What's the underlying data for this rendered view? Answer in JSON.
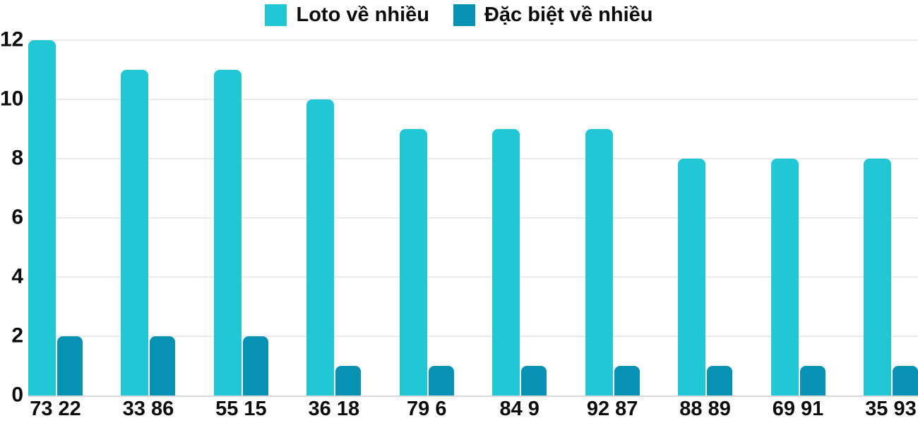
{
  "chart_data": {
    "type": "bar",
    "title": "",
    "categories": [
      "73 22",
      "33 86",
      "55 15",
      "36 18",
      "79 6",
      "84 9",
      "92 87",
      "88 89",
      "69 91",
      "35 93"
    ],
    "series": [
      {
        "name": "Loto về nhiều",
        "color": "#22c7d6",
        "values": [
          12,
          11,
          11,
          10,
          9,
          9,
          9,
          8,
          8,
          8
        ]
      },
      {
        "name": "Đặc biệt về nhiều",
        "color": "#0791b2",
        "values": [
          2,
          2,
          2,
          1,
          1,
          1,
          1,
          1,
          1,
          1
        ]
      }
    ],
    "xlabel": "",
    "ylabel": "",
    "ylim": [
      0,
      12
    ],
    "yticks": [
      0,
      2,
      4,
      6,
      8,
      10,
      12
    ],
    "grid": true,
    "legend_position": "top",
    "colors": {
      "grid": "#e9e9e9",
      "axis": "#d9d9d9",
      "text": "#0d0d0d",
      "background": "#ffffff"
    }
  }
}
